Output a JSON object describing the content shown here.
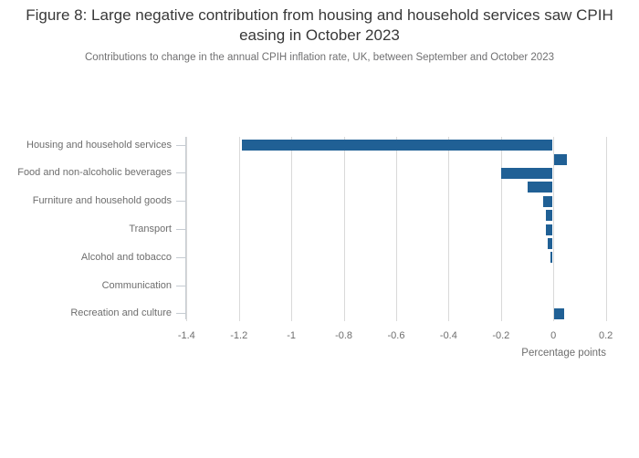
{
  "figure": {
    "title": "Figure 8: Large negative contribution from housing and household services saw CPIH easing in October 2023",
    "subtitle": "Contributions to change in the annual CPIH inflation rate, UK, between September and October 2023"
  },
  "chart_data": {
    "type": "bar",
    "orientation": "horizontal",
    "title": "Figure 8: Large negative contribution from housing and household services saw CPIH easing in October 2023",
    "subtitle": "Contributions to change in the annual CPIH inflation rate, UK, between September and October 2023",
    "categories": [
      "Housing and household services",
      "Food and non-alcoholic beverages",
      "Furniture and household goods",
      "Transport",
      "Alcohol and tobacco",
      "Communication",
      "Recreation and culture"
    ],
    "series": [
      {
        "name": "",
        "values": [
          -1.19,
          -0.2,
          -0.04,
          -0.03,
          -0.01,
          0,
          0.04
        ]
      },
      {
        "name": "",
        "values": [
          0.05,
          -0.1,
          -0.03,
          -0.02,
          0,
          0,
          0
        ]
      }
    ],
    "xlabel": "Percentage points",
    "ylabel": "",
    "xlim": [
      -1.4,
      0.25
    ],
    "x_ticks": [
      -1.4,
      -1.2,
      -1,
      -0.8,
      -0.6,
      -0.4,
      -0.2,
      0,
      0.2
    ],
    "x_tick_labels": [
      "-1.4",
      "-1.2",
      "-1",
      "-0.8",
      "-0.6",
      "-0.4",
      "-0.2",
      "0",
      "0.2"
    ],
    "grid": true,
    "legend": "none",
    "bar_color": "#206095"
  },
  "colors": {
    "bar": "#206095",
    "gridline": "#d9d9d9",
    "axis": "#c6ccd2",
    "title_text": "#383838",
    "muted_text": "#6e6e6e",
    "subtitle_text": "#707071"
  }
}
